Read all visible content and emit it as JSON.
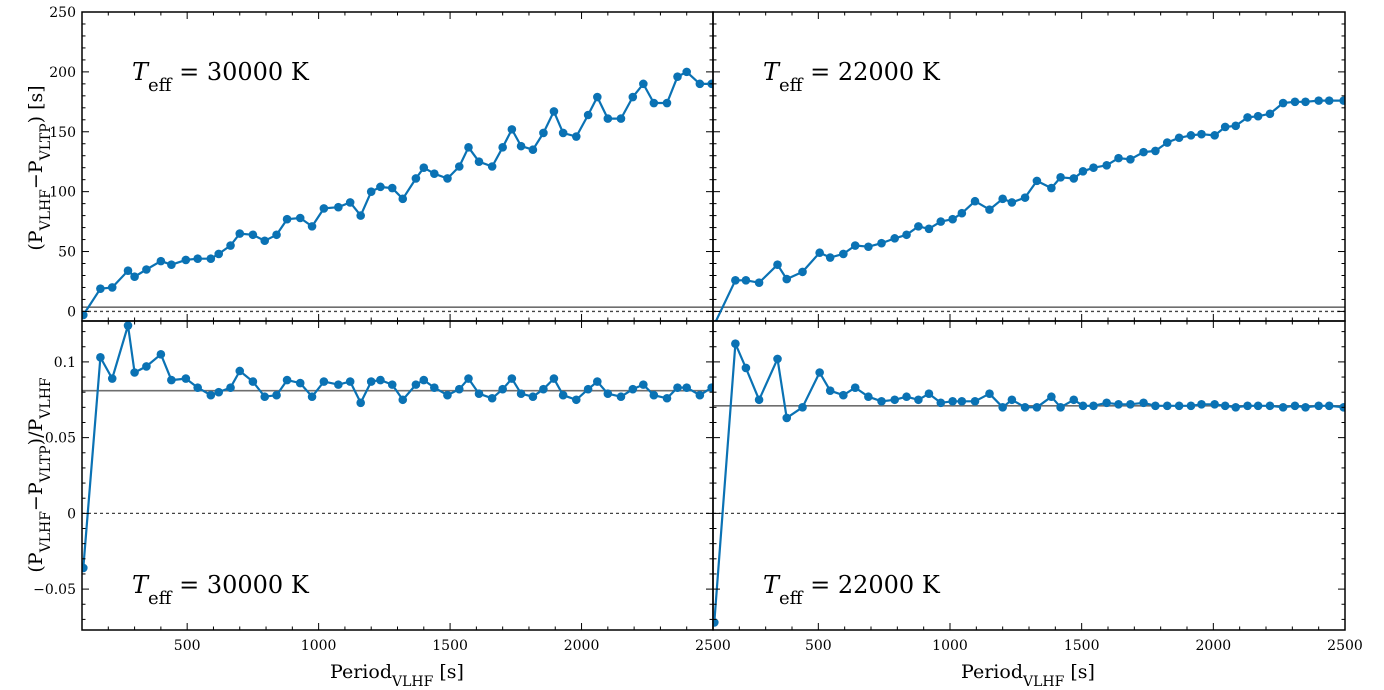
{
  "chart_data": [
    {
      "panel": "top-left",
      "type": "line",
      "ylabel": "(P_VLHF−P_VLTP) [s]",
      "ylim": [
        -8,
        250
      ],
      "xlim": [
        100,
        2500
      ],
      "yticks": [
        0,
        50,
        100,
        150,
        200,
        250
      ],
      "annotation": {
        "symbol": "T",
        "sub": "eff",
        "text": " = 30000 K"
      },
      "ref_solid": 3.5,
      "ref_dotted": 0,
      "x": [
        105,
        170,
        215,
        275,
        300,
        345,
        400,
        440,
        495,
        540,
        590,
        620,
        665,
        700,
        750,
        795,
        840,
        880,
        930,
        975,
        1020,
        1075,
        1120,
        1160,
        1200,
        1235,
        1280,
        1320,
        1370,
        1400,
        1440,
        1490,
        1535,
        1570,
        1610,
        1660,
        1700,
        1735,
        1770,
        1815,
        1855,
        1895,
        1930,
        1980,
        2025,
        2060,
        2100,
        2150,
        2195,
        2235,
        2275,
        2325,
        2365,
        2400,
        2450,
        2495
      ],
      "y": [
        -3,
        19,
        20,
        34,
        29,
        35,
        42,
        39,
        43,
        44,
        44,
        48,
        55,
        65,
        64,
        59,
        64,
        77,
        78,
        71,
        86,
        87,
        91,
        80,
        100,
        104,
        103,
        94,
        111,
        120,
        115,
        111,
        121,
        137,
        125,
        121,
        137,
        152,
        138,
        135,
        149,
        167,
        149,
        146,
        164,
        179,
        161,
        161,
        179,
        190,
        174,
        174,
        196,
        200,
        190,
        190
      ]
    },
    {
      "panel": "top-right",
      "type": "line",
      "ylim": [
        -8,
        250
      ],
      "xlim": [
        100,
        2500
      ],
      "yticks": [
        0,
        50,
        100,
        150,
        200,
        250
      ],
      "annotation": {
        "symbol": "T",
        "sub": "eff",
        "text": " = 22000 K"
      },
      "ref_solid": 3.5,
      "ref_dotted": 0,
      "x": [
        105,
        185,
        225,
        275,
        345,
        380,
        440,
        505,
        545,
        595,
        640,
        690,
        740,
        790,
        835,
        880,
        920,
        965,
        1010,
        1045,
        1095,
        1150,
        1200,
        1235,
        1285,
        1330,
        1385,
        1420,
        1470,
        1505,
        1545,
        1595,
        1640,
        1685,
        1735,
        1780,
        1825,
        1870,
        1915,
        1955,
        2005,
        2045,
        2085,
        2130,
        2170,
        2215,
        2265,
        2310,
        2350,
        2400,
        2440,
        2495
      ],
      "y": [
        -11,
        26,
        26,
        24,
        39,
        27,
        33,
        49,
        45,
        48,
        55,
        54,
        57,
        61,
        64,
        71,
        69,
        75,
        77,
        82,
        92,
        85,
        94,
        91,
        95,
        109,
        103,
        112,
        111,
        117,
        120,
        122,
        128,
        127,
        133,
        134,
        141,
        145,
        147,
        148,
        147,
        154,
        155,
        162,
        163,
        165,
        174,
        175,
        175,
        176,
        176,
        176
      ]
    },
    {
      "panel": "bottom-left",
      "type": "line",
      "ylabel": "(P_VLHF−P_VLTP)/P_VLHF",
      "xlabel": "Period_VLHF [s]",
      "ylim": [
        -0.077,
        0.127
      ],
      "xlim": [
        100,
        2500
      ],
      "yticks": [
        -0.05,
        0,
        0.05,
        0.1
      ],
      "ytick_labels": [
        "−0.05",
        "0",
        "0.05",
        "0.1"
      ],
      "xticks": [
        500,
        1000,
        1500,
        2000,
        2500
      ],
      "annotation": {
        "symbol": "T",
        "sub": "eff",
        "text": " = 30000 K"
      },
      "ref_solid": 0.081,
      "ref_dotted": 0,
      "x": [
        105,
        170,
        215,
        275,
        300,
        345,
        400,
        440,
        495,
        540,
        590,
        620,
        665,
        700,
        750,
        795,
        840,
        880,
        930,
        975,
        1020,
        1075,
        1120,
        1160,
        1200,
        1235,
        1280,
        1320,
        1370,
        1400,
        1440,
        1490,
        1535,
        1570,
        1610,
        1660,
        1700,
        1735,
        1770,
        1815,
        1855,
        1895,
        1930,
        1980,
        2025,
        2060,
        2100,
        2150,
        2195,
        2235,
        2275,
        2325,
        2365,
        2400,
        2450,
        2495
      ],
      "y": [
        -0.036,
        0.103,
        0.089,
        0.124,
        0.093,
        0.097,
        0.105,
        0.088,
        0.089,
        0.083,
        0.078,
        0.08,
        0.083,
        0.094,
        0.087,
        0.077,
        0.078,
        0.088,
        0.086,
        0.077,
        0.087,
        0.085,
        0.087,
        0.073,
        0.087,
        0.088,
        0.085,
        0.075,
        0.085,
        0.088,
        0.083,
        0.078,
        0.082,
        0.089,
        0.079,
        0.076,
        0.082,
        0.089,
        0.079,
        0.077,
        0.082,
        0.089,
        0.078,
        0.075,
        0.082,
        0.087,
        0.079,
        0.077,
        0.082,
        0.085,
        0.078,
        0.076,
        0.083,
        0.083,
        0.078,
        0.083
      ]
    },
    {
      "panel": "bottom-right",
      "type": "line",
      "xlabel": "Period_VLHF [s]",
      "ylim": [
        -0.077,
        0.127
      ],
      "xlim": [
        100,
        2500
      ],
      "yticks": [
        -0.05,
        0,
        0.05,
        0.1
      ],
      "xticks": [
        500,
        1000,
        1500,
        2000,
        2500
      ],
      "annotation": {
        "symbol": "T",
        "sub": "eff",
        "text": " = 22000 K"
      },
      "ref_solid": 0.071,
      "ref_dotted": 0,
      "x": [
        105,
        185,
        225,
        275,
        345,
        380,
        440,
        505,
        545,
        595,
        640,
        690,
        740,
        790,
        835,
        880,
        920,
        965,
        1010,
        1045,
        1095,
        1150,
        1200,
        1235,
        1285,
        1330,
        1385,
        1420,
        1470,
        1505,
        1545,
        1595,
        1640,
        1685,
        1735,
        1780,
        1825,
        1870,
        1915,
        1955,
        2005,
        2045,
        2085,
        2130,
        2170,
        2215,
        2265,
        2310,
        2350,
        2400,
        2440,
        2495
      ],
      "y": [
        -0.072,
        0.112,
        0.096,
        0.075,
        0.102,
        0.063,
        0.07,
        0.093,
        0.081,
        0.078,
        0.083,
        0.077,
        0.074,
        0.075,
        0.077,
        0.075,
        0.079,
        0.073,
        0.074,
        0.074,
        0.074,
        0.079,
        0.07,
        0.075,
        0.07,
        0.07,
        0.077,
        0.07,
        0.075,
        0.071,
        0.071,
        0.073,
        0.072,
        0.072,
        0.073,
        0.071,
        0.071,
        0.071,
        0.071,
        0.072,
        0.072,
        0.071,
        0.07,
        0.071,
        0.071,
        0.071,
        0.07,
        0.071,
        0.07,
        0.071,
        0.071,
        0.07
      ]
    }
  ]
}
